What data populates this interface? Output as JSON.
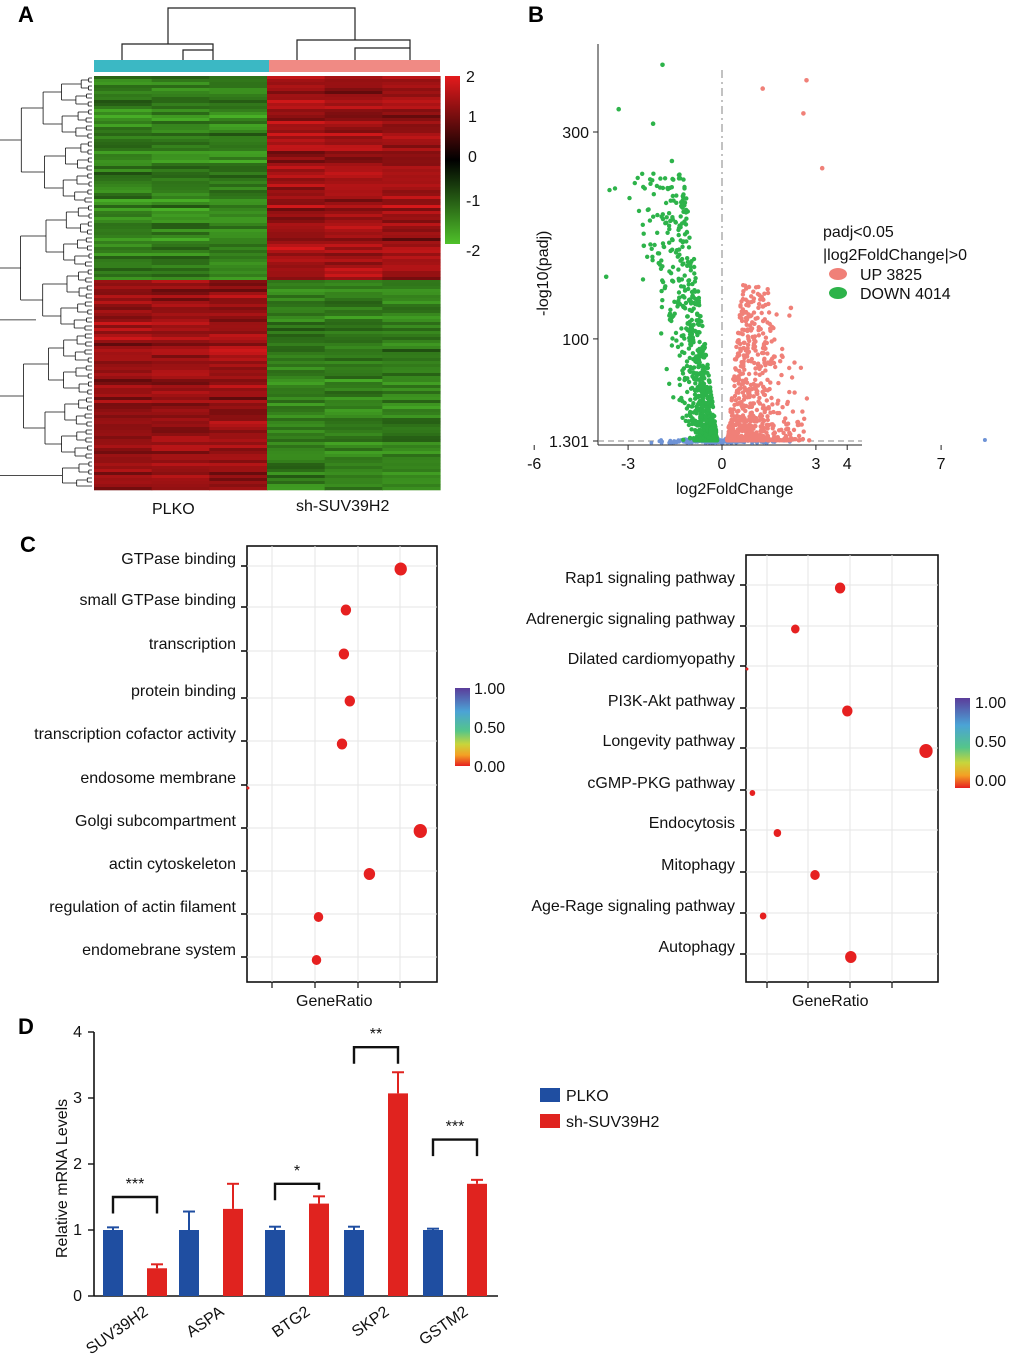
{
  "panel_labels": {
    "a": "A",
    "b": "B",
    "c": "C",
    "d": "D"
  },
  "colors": {
    "plko": "#1f4ea1",
    "sh": "#e0231f",
    "up": "#f08078",
    "down": "#2db34a",
    "ns": "#6e93d6",
    "cyan": "#3bb8c4",
    "salmon": "#f08a84"
  },
  "chart_data": [
    {
      "type": "heatmap",
      "panel": "A",
      "groups": [
        "PLKO",
        "sh-SUV39H2"
      ],
      "samples_per_group": 3,
      "colorbar_ticks": [
        "2",
        "1",
        "0",
        "-1",
        "-2"
      ],
      "colorbar_range": [
        -2,
        2
      ],
      "cluster_blocks": [
        {
          "name": "up-in-sh",
          "plko_level": -1.3,
          "sh_level": 1.4
        },
        {
          "name": "down-in-sh",
          "plko_level": 1.3,
          "sh_level": -1.3
        }
      ]
    },
    {
      "type": "scatter",
      "panel": "B",
      "xlabel": "log2FoldChange",
      "ylabel": "-log10(padj)",
      "x_ticks": [
        "-6",
        "-3",
        "0",
        "3",
        "4",
        "7"
      ],
      "x_tick_values": [
        -6,
        -3,
        0,
        3,
        4,
        7
      ],
      "xlim": [
        -8,
        10
      ],
      "y_ticks": [
        "300",
        "100",
        "1.301"
      ],
      "y_tick_values": [
        300,
        100,
        1.301
      ],
      "ylim": [
        0,
        375
      ],
      "legend_title_1": "padj<0.05",
      "legend_title_2": "|log2FoldChange|>0",
      "series": [
        {
          "name": "UP 3825",
          "count": 3825
        },
        {
          "name": "DOWN 4014",
          "count": 4014
        }
      ],
      "highlight_points": [
        {
          "x": -1.9,
          "y": 365
        },
        {
          "x": -3.3,
          "y": 322
        },
        {
          "x": -2.2,
          "y": 308
        },
        {
          "x": -1.6,
          "y": 272
        },
        {
          "x": -1.3,
          "y": 232
        },
        {
          "x": -2.5,
          "y": 190
        },
        {
          "x": 1.3,
          "y": 342
        },
        {
          "x": 2.7,
          "y": 350
        },
        {
          "x": 2.6,
          "y": 318
        },
        {
          "x": 3.2,
          "y": 265
        },
        {
          "x": -3.7,
          "y": 160
        },
        {
          "x": 2.2,
          "y": 130
        }
      ]
    },
    {
      "type": "scatter",
      "panel": "C-left",
      "xlabel": "GeneRatio",
      "categories": [
        "GTPase binding",
        "small GTPase binding",
        "transcription",
        "protein binding",
        "transcription cofactor activity",
        "endosome membrane",
        "Golgi subcompartment",
        "actin cytoskeleton",
        "regulation of actin filament",
        "endomebrane system"
      ],
      "gene_ratio": [
        0.78,
        0.5,
        0.49,
        0.52,
        0.48,
        0.0,
        0.88,
        0.62,
        0.36,
        0.35
      ],
      "sizes": [
        6.5,
        5.5,
        5.5,
        5.5,
        5.5,
        1.5,
        7,
        6,
        5,
        5
      ],
      "xlim": [
        0,
        0.95
      ],
      "colorbar_ticks": [
        "1.00",
        "0.50",
        "0.00"
      ]
    },
    {
      "type": "scatter",
      "panel": "C-right",
      "xlabel": "GeneRatio",
      "categories": [
        "Rap1 signaling pathway",
        "Adrenergic signaling pathway",
        "Dilated cardiomyopathy",
        "PI3K-Akt  pathway",
        "Longevity pathway",
        "cGMP-PKG pathway",
        "Endocytosis",
        "Mitophagy",
        "Age-Rage signaling pathway",
        "Autophagy"
      ],
      "gene_ratio": [
        0.52,
        0.27,
        0.0,
        0.56,
        1.0,
        0.03,
        0.17,
        0.38,
        0.09,
        0.58
      ],
      "sizes": [
        5.5,
        4.5,
        1.5,
        5.5,
        7,
        3,
        4,
        5,
        3.5,
        6
      ],
      "xlim": [
        0,
        1.05
      ],
      "colorbar_ticks": [
        "1.00",
        "0.50",
        "0.00"
      ]
    },
    {
      "type": "bar",
      "panel": "D",
      "ylabel": "Relative mRNA Levels",
      "categories": [
        "SUV39H2",
        "ASPA",
        "BTG2",
        "SKP2",
        "GSTM2"
      ],
      "ylim": [
        0,
        4
      ],
      "y_ticks": [
        "0",
        "1",
        "2",
        "3",
        "4"
      ],
      "series": [
        {
          "name": "PLKO",
          "values": [
            1.0,
            1.0,
            1.0,
            1.0,
            1.0
          ],
          "errors": [
            0.04,
            0.28,
            0.05,
            0.05,
            0.02
          ]
        },
        {
          "name": "sh-SUV39H2",
          "values": [
            0.42,
            1.32,
            1.4,
            3.07,
            1.7
          ],
          "errors": [
            0.06,
            0.38,
            0.11,
            0.32,
            0.06
          ]
        }
      ],
      "significance": [
        {
          "label": "***",
          "category": 0,
          "y": 1.5
        },
        {
          "label": "*",
          "category": 2,
          "y": 1.7
        },
        {
          "label": "**",
          "category": 3,
          "y": 3.77
        },
        {
          "label": "***",
          "category": 4,
          "y": 2.37
        }
      ]
    }
  ]
}
